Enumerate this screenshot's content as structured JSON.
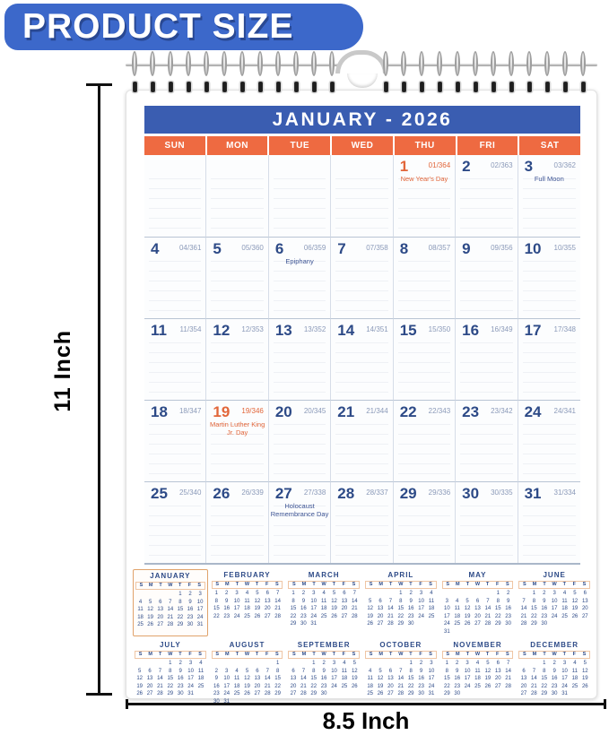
{
  "banner": {
    "label": "PRODUCT SIZE"
  },
  "dimensions": {
    "height_label": "11 Inch",
    "width_label": "8.5 Inch"
  },
  "calendar": {
    "title": "JANUARY - 2026",
    "weekdays": [
      "SUN",
      "MON",
      "TUE",
      "WED",
      "THU",
      "FRI",
      "SAT"
    ],
    "weeks": [
      [
        null,
        null,
        null,
        null,
        {
          "day": "1",
          "doy": "01/364",
          "holiday": "New Year's Day",
          "accent": true
        },
        {
          "day": "2",
          "doy": "02/363"
        },
        {
          "day": "3",
          "doy": "03/362",
          "holiday": "Full Moon"
        }
      ],
      [
        {
          "day": "4",
          "doy": "04/361"
        },
        {
          "day": "5",
          "doy": "05/360"
        },
        {
          "day": "6",
          "doy": "06/359",
          "holiday": "Epiphany"
        },
        {
          "day": "7",
          "doy": "07/358"
        },
        {
          "day": "8",
          "doy": "08/357"
        },
        {
          "day": "9",
          "doy": "09/356"
        },
        {
          "day": "10",
          "doy": "10/355"
        }
      ],
      [
        {
          "day": "11",
          "doy": "11/354"
        },
        {
          "day": "12",
          "doy": "12/353"
        },
        {
          "day": "13",
          "doy": "13/352"
        },
        {
          "day": "14",
          "doy": "14/351"
        },
        {
          "day": "15",
          "doy": "15/350"
        },
        {
          "day": "16",
          "doy": "16/349"
        },
        {
          "day": "17",
          "doy": "17/348"
        }
      ],
      [
        {
          "day": "18",
          "doy": "18/347"
        },
        {
          "day": "19",
          "doy": "19/346",
          "holiday": "Martin Luther King Jr. Day",
          "accent": true
        },
        {
          "day": "20",
          "doy": "20/345"
        },
        {
          "day": "21",
          "doy": "21/344"
        },
        {
          "day": "22",
          "doy": "22/343"
        },
        {
          "day": "23",
          "doy": "23/342"
        },
        {
          "day": "24",
          "doy": "24/341"
        }
      ],
      [
        {
          "day": "25",
          "doy": "25/340"
        },
        {
          "day": "26",
          "doy": "26/339"
        },
        {
          "day": "27",
          "doy": "27/338",
          "holiday": "Holocaust Remembrance Day"
        },
        {
          "day": "28",
          "doy": "28/337"
        },
        {
          "day": "29",
          "doy": "29/336"
        },
        {
          "day": "30",
          "doy": "30/335"
        },
        {
          "day": "31",
          "doy": "31/334"
        }
      ]
    ]
  },
  "mini_weekday_letters": [
    "S",
    "M",
    "T",
    "W",
    "T",
    "F",
    "S"
  ],
  "mini_months": [
    {
      "name": "JANUARY",
      "first_day": 4,
      "num_days": 31,
      "current": true
    },
    {
      "name": "FEBRUARY",
      "first_day": 0,
      "num_days": 28,
      "current": false
    },
    {
      "name": "MARCH",
      "first_day": 0,
      "num_days": 31,
      "current": false
    },
    {
      "name": "APRIL",
      "first_day": 3,
      "num_days": 30,
      "current": false
    },
    {
      "name": "MAY",
      "first_day": 5,
      "num_days": 31,
      "current": false
    },
    {
      "name": "JUNE",
      "first_day": 1,
      "num_days": 30,
      "current": false
    },
    {
      "name": "JULY",
      "first_day": 3,
      "num_days": 31,
      "current": false
    },
    {
      "name": "AUGUST",
      "first_day": 6,
      "num_days": 31,
      "current": false
    },
    {
      "name": "SEPTEMBER",
      "first_day": 2,
      "num_days": 30,
      "current": false
    },
    {
      "name": "OCTOBER",
      "first_day": 4,
      "num_days": 31,
      "current": false
    },
    {
      "name": "NOVEMBER",
      "first_day": 0,
      "num_days": 30,
      "current": false
    },
    {
      "name": "DECEMBER",
      "first_day": 2,
      "num_days": 31,
      "current": false
    }
  ],
  "colors": {
    "banner_blue": "#3c68ca",
    "title_blue": "#3a5db1",
    "accent_orange": "#ee6a41",
    "navy": "#2d4a87",
    "doy_gray": "#8b9ab9",
    "highlight_orange": "#e2663a"
  }
}
